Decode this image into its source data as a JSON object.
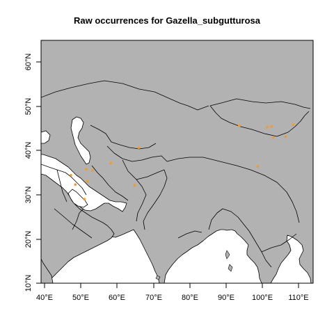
{
  "map": {
    "title": "Raw occurrences for Gazella_subgutturosa",
    "x_ticks": [
      "40°E",
      "50°E",
      "60°E",
      "70°E",
      "80°E",
      "90°E",
      "100°E",
      "110°E"
    ],
    "y_ticks": [
      "10°N",
      "20°N",
      "30°N",
      "40°N",
      "50°N",
      "60°N"
    ],
    "extent": {
      "lon": [
        39,
        116.5
      ],
      "lat": [
        10,
        65
      ]
    },
    "colors": {
      "land": "#b2b2b2",
      "sea": "#ffffff",
      "border": "#000000",
      "points": "#f59a23"
    },
    "points": [
      {
        "lon": 47.3,
        "lat": 34.4
      },
      {
        "lon": 48.5,
        "lat": 32.3
      },
      {
        "lon": 51.5,
        "lat": 35.7
      },
      {
        "lon": 53.2,
        "lat": 35.5
      },
      {
        "lon": 51.8,
        "lat": 33.0
      },
      {
        "lon": 51.0,
        "lat": 29.0
      },
      {
        "lon": 58.3,
        "lat": 37.1
      },
      {
        "lon": 64.8,
        "lat": 32.1
      },
      {
        "lon": 66.0,
        "lat": 40.6
      },
      {
        "lon": 93.7,
        "lat": 45.6
      },
      {
        "lon": 98.8,
        "lat": 36.4
      },
      {
        "lon": 101.4,
        "lat": 45.2
      },
      {
        "lon": 102.6,
        "lat": 45.4
      },
      {
        "lon": 103.1,
        "lat": 42.9
      },
      {
        "lon": 106.5,
        "lat": 43.1
      },
      {
        "lon": 108.6,
        "lat": 45.8
      }
    ]
  }
}
